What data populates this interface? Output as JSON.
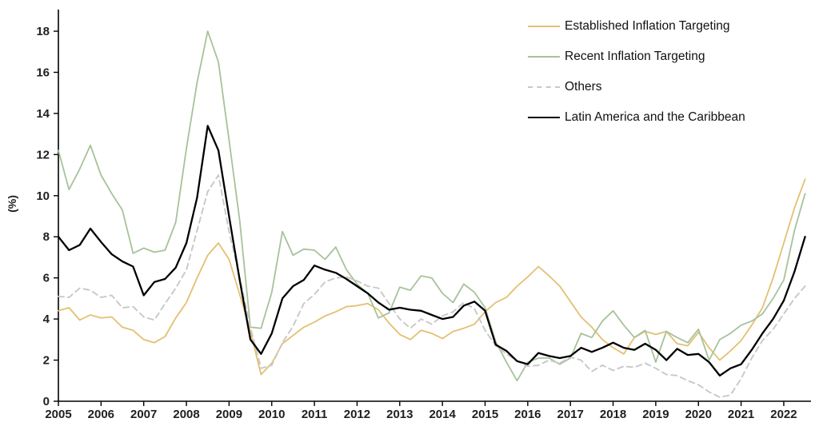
{
  "chart_data": {
    "type": "line",
    "title": "",
    "xlabel": "",
    "ylabel": "(%)",
    "grid": false,
    "legend_position": "top-right",
    "xlim": [
      2005,
      2022.6
    ],
    "ylim": [
      0,
      19
    ],
    "x_ticks": [
      "2005",
      "2006",
      "2007",
      "2008",
      "2009",
      "2010",
      "2011",
      "2012",
      "2013",
      "2014",
      "2015",
      "2016",
      "2017",
      "2018",
      "2019",
      "2020",
      "2021",
      "2022"
    ],
    "y_ticks": [
      "0",
      "2",
      "4",
      "6",
      "8",
      "10",
      "12",
      "14",
      "16",
      "18"
    ],
    "x_start": 2005.0,
    "x_step": 0.25,
    "axis_color": "#000000",
    "series": [
      {
        "name": "Established Inflation Targeting",
        "color": "#e3c072",
        "dash": false,
        "width": 1.8,
        "values": [
          4.4,
          4.55,
          3.95,
          4.2,
          4.05,
          4.1,
          3.6,
          3.45,
          3.0,
          2.85,
          3.15,
          4.05,
          4.8,
          6.0,
          7.1,
          7.7,
          6.9,
          5.2,
          3.4,
          1.3,
          1.85,
          2.8,
          3.2,
          3.6,
          3.85,
          4.15,
          4.35,
          4.6,
          4.65,
          4.75,
          4.45,
          3.8,
          3.25,
          3.0,
          3.45,
          3.3,
          3.05,
          3.4,
          3.55,
          3.75,
          4.35,
          4.8,
          5.05,
          5.6,
          6.05,
          6.55,
          6.1,
          5.6,
          4.85,
          4.1,
          3.6,
          3.0,
          2.6,
          2.3,
          3.1,
          3.4,
          3.25,
          3.4,
          2.8,
          2.7,
          3.35,
          2.6,
          2.0,
          2.45,
          2.95,
          3.7,
          4.55,
          6.0,
          7.7,
          9.4,
          10.8
        ]
      },
      {
        "name": "Recent Inflation Targeting",
        "color": "#a7c29b",
        "dash": false,
        "width": 1.8,
        "values": [
          12.2,
          10.3,
          11.3,
          12.45,
          11.0,
          10.1,
          9.3,
          7.2,
          7.45,
          7.25,
          7.35,
          8.7,
          12.3,
          15.5,
          18.0,
          16.5,
          12.7,
          8.8,
          3.6,
          3.55,
          5.3,
          8.25,
          7.1,
          7.4,
          7.35,
          6.9,
          7.5,
          6.4,
          5.7,
          5.25,
          4.05,
          4.3,
          5.55,
          5.4,
          6.1,
          6.0,
          5.25,
          4.8,
          5.7,
          5.3,
          4.55,
          2.9,
          1.9,
          1.0,
          1.9,
          2.1,
          2.1,
          1.8,
          2.1,
          3.3,
          3.1,
          3.9,
          4.4,
          3.7,
          3.1,
          3.45,
          1.9,
          3.4,
          3.1,
          2.85,
          3.5,
          2.0,
          3.0,
          3.3,
          3.7,
          3.9,
          4.25,
          5.0,
          5.9,
          8.3,
          10.1
        ]
      },
      {
        "name": "Others",
        "color": "#c8c8c8",
        "dash": true,
        "width": 1.9,
        "values": [
          5.1,
          5.05,
          5.5,
          5.4,
          5.05,
          5.15,
          4.55,
          4.6,
          4.1,
          3.95,
          4.75,
          5.5,
          6.4,
          8.3,
          10.2,
          11.0,
          8.25,
          6.0,
          3.6,
          1.6,
          1.75,
          2.85,
          3.65,
          4.75,
          5.2,
          5.8,
          6.0,
          6.05,
          5.85,
          5.6,
          5.5,
          4.75,
          4.0,
          3.55,
          4.0,
          3.75,
          4.15,
          4.35,
          4.8,
          4.5,
          3.45,
          2.7,
          2.3,
          1.95,
          1.7,
          1.75,
          2.0,
          1.85,
          2.15,
          2.0,
          1.45,
          1.75,
          1.5,
          1.7,
          1.65,
          1.85,
          1.6,
          1.3,
          1.25,
          1.0,
          0.8,
          0.45,
          0.2,
          0.3,
          1.1,
          2.1,
          2.95,
          3.5,
          4.25,
          5.0,
          5.6
        ]
      },
      {
        "name": "Latin America and the Caribbean",
        "color": "#000000",
        "dash": false,
        "width": 2.3,
        "values": [
          8.0,
          7.35,
          7.6,
          8.4,
          7.75,
          7.15,
          6.8,
          6.55,
          5.15,
          5.8,
          5.95,
          6.5,
          7.7,
          9.9,
          13.4,
          12.2,
          9.0,
          5.9,
          3.0,
          2.3,
          3.3,
          5.0,
          5.6,
          5.9,
          6.6,
          6.4,
          6.25,
          5.95,
          5.6,
          5.25,
          4.8,
          4.45,
          4.55,
          4.45,
          4.4,
          4.2,
          4.0,
          4.1,
          4.65,
          4.85,
          4.4,
          2.75,
          2.45,
          1.95,
          1.8,
          2.35,
          2.2,
          2.1,
          2.2,
          2.6,
          2.4,
          2.6,
          2.85,
          2.6,
          2.5,
          2.8,
          2.5,
          2.0,
          2.55,
          2.25,
          2.3,
          1.9,
          1.25,
          1.6,
          1.8,
          2.5,
          3.3,
          4.0,
          4.9,
          6.3,
          8.0
        ]
      }
    ]
  }
}
